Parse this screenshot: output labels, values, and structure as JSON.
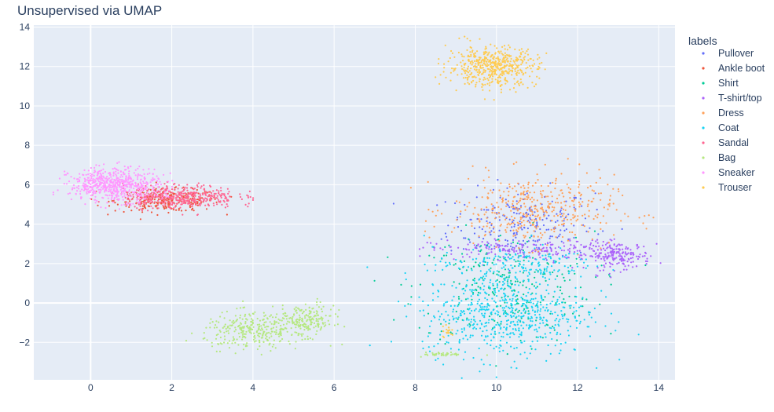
{
  "chart_data": {
    "type": "scatter",
    "title": "Unsupervised via UMAP",
    "xlabel": "",
    "ylabel": "",
    "xlim": [
      -1.4,
      14.4
    ],
    "ylim": [
      -3.9,
      14.1
    ],
    "x_ticks": [
      0,
      2,
      4,
      6,
      8,
      10,
      12,
      14
    ],
    "y_ticks": [
      -2,
      0,
      2,
      4,
      6,
      8,
      10,
      12,
      14
    ],
    "grid": true,
    "legend": {
      "title": "labels",
      "placement": "right"
    },
    "series": [
      {
        "name": "Pullover",
        "color": "#636efa",
        "clusters": [
          {
            "cx": 10.6,
            "cy": 4.0,
            "sx": 0.9,
            "sy": 0.9,
            "n": 240
          }
        ]
      },
      {
        "name": "Ankle boot",
        "color": "#ef553b",
        "clusters": [
          {
            "cx": 1.9,
            "cy": 5.2,
            "sx": 0.65,
            "sy": 0.28,
            "n": 260
          }
        ]
      },
      {
        "name": "Shirt",
        "color": "#00cc96",
        "clusters": [
          {
            "cx": 10.2,
            "cy": 0.8,
            "sx": 1.1,
            "sy": 1.4,
            "n": 280
          }
        ]
      },
      {
        "name": "T-shirt/top",
        "color": "#ab63fa",
        "clusters": [
          {
            "cx": 10.8,
            "cy": 2.7,
            "sx": 1.2,
            "sy": 0.25,
            "n": 200
          },
          {
            "cx": 13.0,
            "cy": 2.4,
            "sx": 0.4,
            "sy": 0.35,
            "n": 180
          }
        ]
      },
      {
        "name": "Dress",
        "color": "#ffa15a",
        "clusters": [
          {
            "cx": 10.9,
            "cy": 4.7,
            "sx": 1.0,
            "sy": 0.9,
            "n": 420
          }
        ]
      },
      {
        "name": "Coat",
        "color": "#19d3f3",
        "clusters": [
          {
            "cx": 10.2,
            "cy": -0.5,
            "sx": 1.0,
            "sy": 1.1,
            "n": 620
          },
          {
            "cx": 10.5,
            "cy": 2.0,
            "sx": 1.0,
            "sy": 0.4,
            "n": 150
          }
        ]
      },
      {
        "name": "Sandal",
        "color": "#ff6692",
        "clusters": [
          {
            "cx": 2.2,
            "cy": 5.4,
            "sx": 0.7,
            "sy": 0.3,
            "n": 420
          }
        ]
      },
      {
        "name": "Bag",
        "color": "#b6e880",
        "clusters": [
          {
            "cx": 4.0,
            "cy": -1.4,
            "sx": 0.6,
            "sy": 0.45,
            "n": 300
          },
          {
            "cx": 5.3,
            "cy": -0.9,
            "sx": 0.35,
            "sy": 0.4,
            "n": 200
          },
          {
            "cx": 8.7,
            "cy": -2.6,
            "sx": 0.25,
            "sy": 0.05,
            "n": 40
          }
        ]
      },
      {
        "name": "Sneaker",
        "color": "#ff97ff",
        "clusters": [
          {
            "cx": 0.6,
            "cy": 6.0,
            "sx": 0.55,
            "sy": 0.42,
            "n": 600
          }
        ]
      },
      {
        "name": "Trouser",
        "color": "#fecb52",
        "clusters": [
          {
            "cx": 9.9,
            "cy": 12.0,
            "sx": 0.55,
            "sy": 0.5,
            "n": 520
          },
          {
            "cx": 8.8,
            "cy": -1.4,
            "sx": 0.07,
            "sy": 0.2,
            "n": 20
          }
        ]
      }
    ]
  }
}
